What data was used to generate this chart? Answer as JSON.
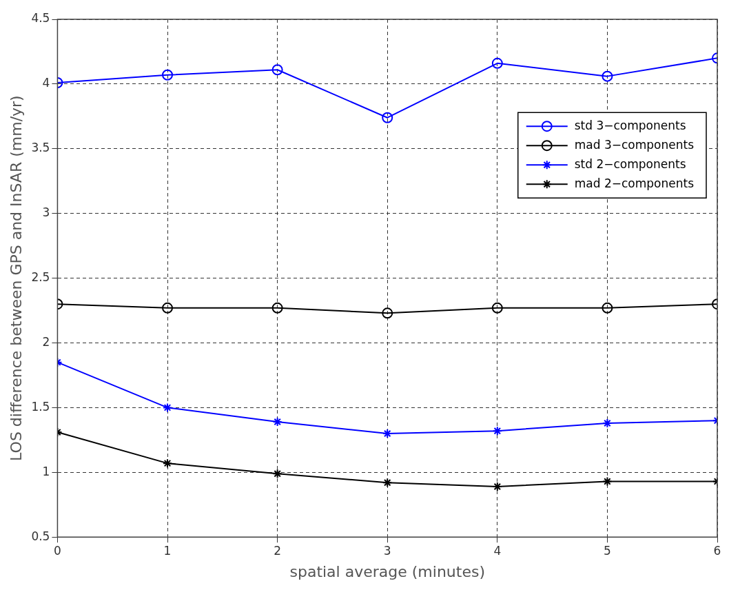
{
  "chart_data": {
    "type": "line",
    "xlabel": "spatial average (minutes)",
    "ylabel": "LOS difference between GPS and InSAR (mm/yr)",
    "x": [
      0,
      1,
      2,
      3,
      4,
      5,
      6
    ],
    "xlim": [
      0,
      6
    ],
    "xticks": [
      0,
      1,
      2,
      3,
      4,
      5,
      6
    ],
    "ylim": [
      0.5,
      4.5
    ],
    "yticks": [
      0.5,
      1,
      1.5,
      2,
      2.5,
      3,
      3.5,
      4,
      4.5
    ],
    "grid": true,
    "legend": "top right",
    "line_style": "solid",
    "series": [
      {
        "name": "std 3−components",
        "color": "#0000ff",
        "marker": "circle",
        "values": [
          4.01,
          4.07,
          4.11,
          3.74,
          4.16,
          4.06,
          4.2
        ]
      },
      {
        "name": "mad 3−components",
        "color": "#000000",
        "marker": "circle",
        "values": [
          2.3,
          2.27,
          2.27,
          2.23,
          2.27,
          2.27,
          2.3
        ]
      },
      {
        "name": "std 2−components",
        "color": "#0000ff",
        "marker": "cross",
        "values": [
          1.85,
          1.5,
          1.39,
          1.3,
          1.32,
          1.38,
          1.4
        ]
      },
      {
        "name": "mad 2−components",
        "color": "#000000",
        "marker": "cross",
        "values": [
          1.31,
          1.07,
          0.99,
          0.92,
          0.89,
          0.93,
          0.93
        ]
      }
    ]
  }
}
